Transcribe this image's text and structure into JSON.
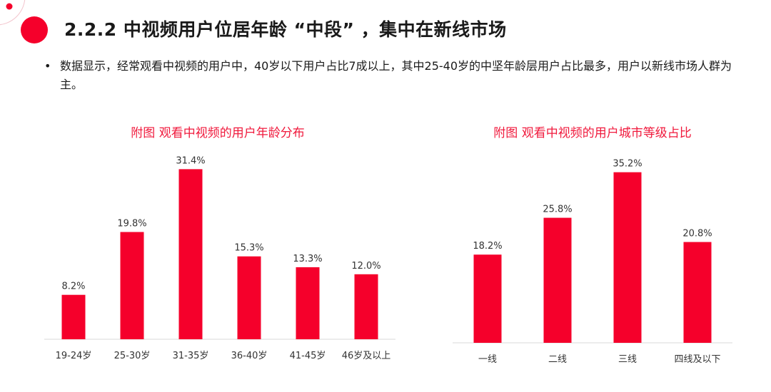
{
  "header": {
    "title": "2.2.2  中视频用户位居年龄 “中段” ，集中在新线市场"
  },
  "bullet": {
    "marker": "•",
    "text": "数据显示，经常观看中视频的用户中，40岁以下用户占比7成以上，其中25-40岁的中坚年龄层用户占比最多，用户以新线市场人群为主。"
  },
  "colors": {
    "bar": "#f5002b",
    "title": "#f0193c",
    "axis": "#d9d9d9"
  },
  "chart_data": [
    {
      "type": "bar",
      "title": "附图 观看中视频的用户年龄分布",
      "categories": [
        "19-24岁",
        "25-30岁",
        "31-35岁",
        "36-40岁",
        "41-45岁",
        "46岁及以上"
      ],
      "values": [
        8.2,
        19.8,
        31.4,
        15.3,
        13.3,
        12.0
      ],
      "labels": [
        "8.2%",
        "19.8%",
        "31.4%",
        "15.3%",
        "13.3%",
        "12.0%"
      ],
      "unit": "%",
      "ylim": [
        0,
        35
      ],
      "grid": false
    },
    {
      "type": "bar",
      "title": "附图 观看中视频的用户城市等级占比",
      "categories": [
        "一线",
        "二线",
        "三线",
        "四线及以下"
      ],
      "values": [
        18.2,
        25.8,
        35.2,
        20.8
      ],
      "labels": [
        "18.2%",
        "25.8%",
        "35.2%",
        "20.8%"
      ],
      "unit": "%",
      "ylim": [
        0,
        40
      ],
      "grid": false
    }
  ]
}
